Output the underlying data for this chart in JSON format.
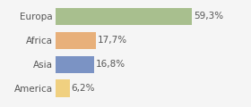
{
  "categories": [
    "Europa",
    "Africa",
    "Asia",
    "America"
  ],
  "values": [
    59.3,
    17.7,
    16.8,
    6.2
  ],
  "labels": [
    "59,3%",
    "17,7%",
    "16,8%",
    "6,2%"
  ],
  "bar_colors": [
    "#a8bf8e",
    "#e8b07a",
    "#7b93c4",
    "#f0d080"
  ],
  "background_color": "#f5f5f5",
  "xlim": [
    0,
    72
  ],
  "bar_height": 0.72,
  "label_fontsize": 7.5,
  "tick_fontsize": 7.5,
  "grid_color": "#cccccc",
  "text_color": "#555555"
}
